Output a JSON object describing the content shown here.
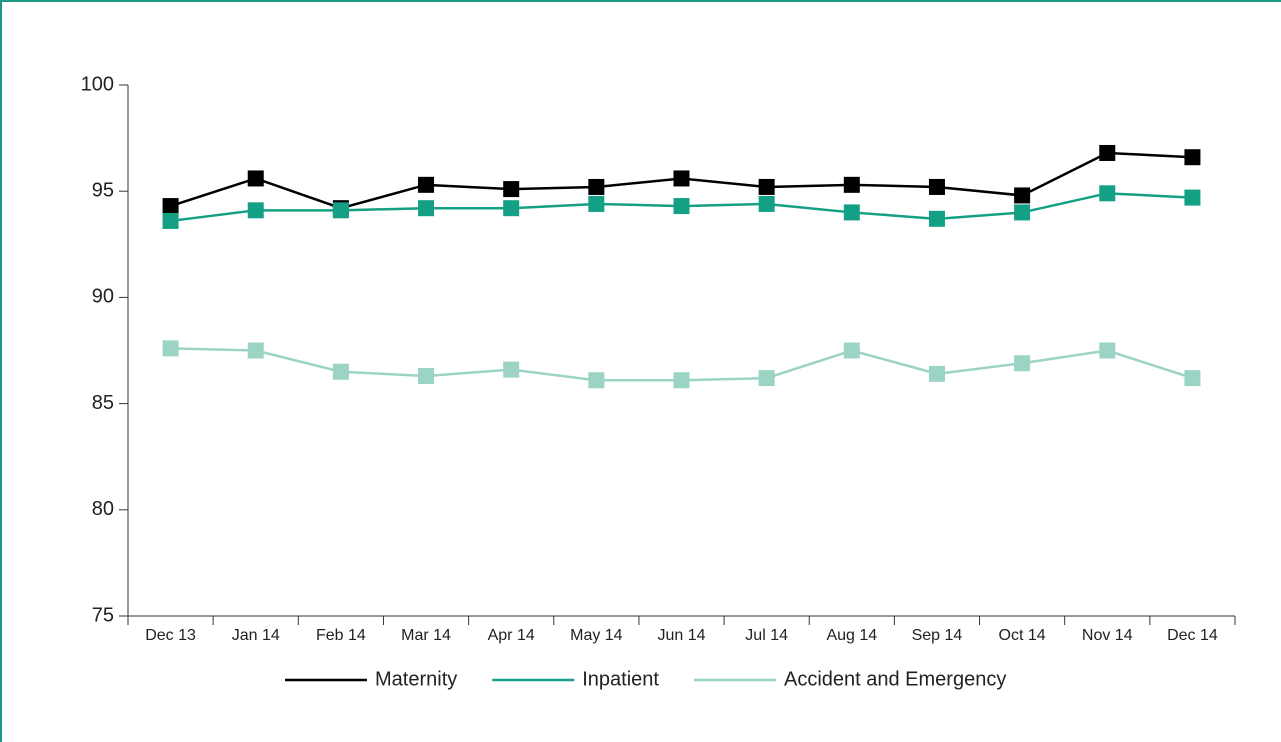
{
  "chart_data": {
    "type": "line",
    "categories": [
      "Dec 13",
      "Jan 14",
      "Feb 14",
      "Mar 14",
      "Apr 14",
      "May 14",
      "Jun 14",
      "Jul 14",
      "Aug 14",
      "Sep 14",
      "Oct 14",
      "Nov 14",
      "Dec 14"
    ],
    "series": [
      {
        "name": "Maternity",
        "color": "#000000",
        "values": [
          94.3,
          95.6,
          94.2,
          95.3,
          95.1,
          95.2,
          95.6,
          95.2,
          95.3,
          95.2,
          94.8,
          96.8,
          96.6
        ]
      },
      {
        "name": "Inpatient",
        "color": "#14a085",
        "values": [
          93.6,
          94.1,
          94.1,
          94.2,
          94.2,
          94.4,
          94.3,
          94.4,
          94.0,
          93.7,
          94.0,
          94.9,
          94.7
        ]
      },
      {
        "name": "Accident and Emergency",
        "color": "#9bd3c4",
        "values": [
          87.6,
          87.5,
          86.5,
          86.3,
          86.6,
          86.1,
          86.1,
          86.2,
          87.5,
          86.4,
          86.9,
          87.5,
          86.2
        ]
      }
    ],
    "ylim": [
      75,
      100
    ],
    "yticks": [
      75,
      80,
      85,
      90,
      95,
      100
    ],
    "grid": false,
    "legend": "bottom"
  }
}
